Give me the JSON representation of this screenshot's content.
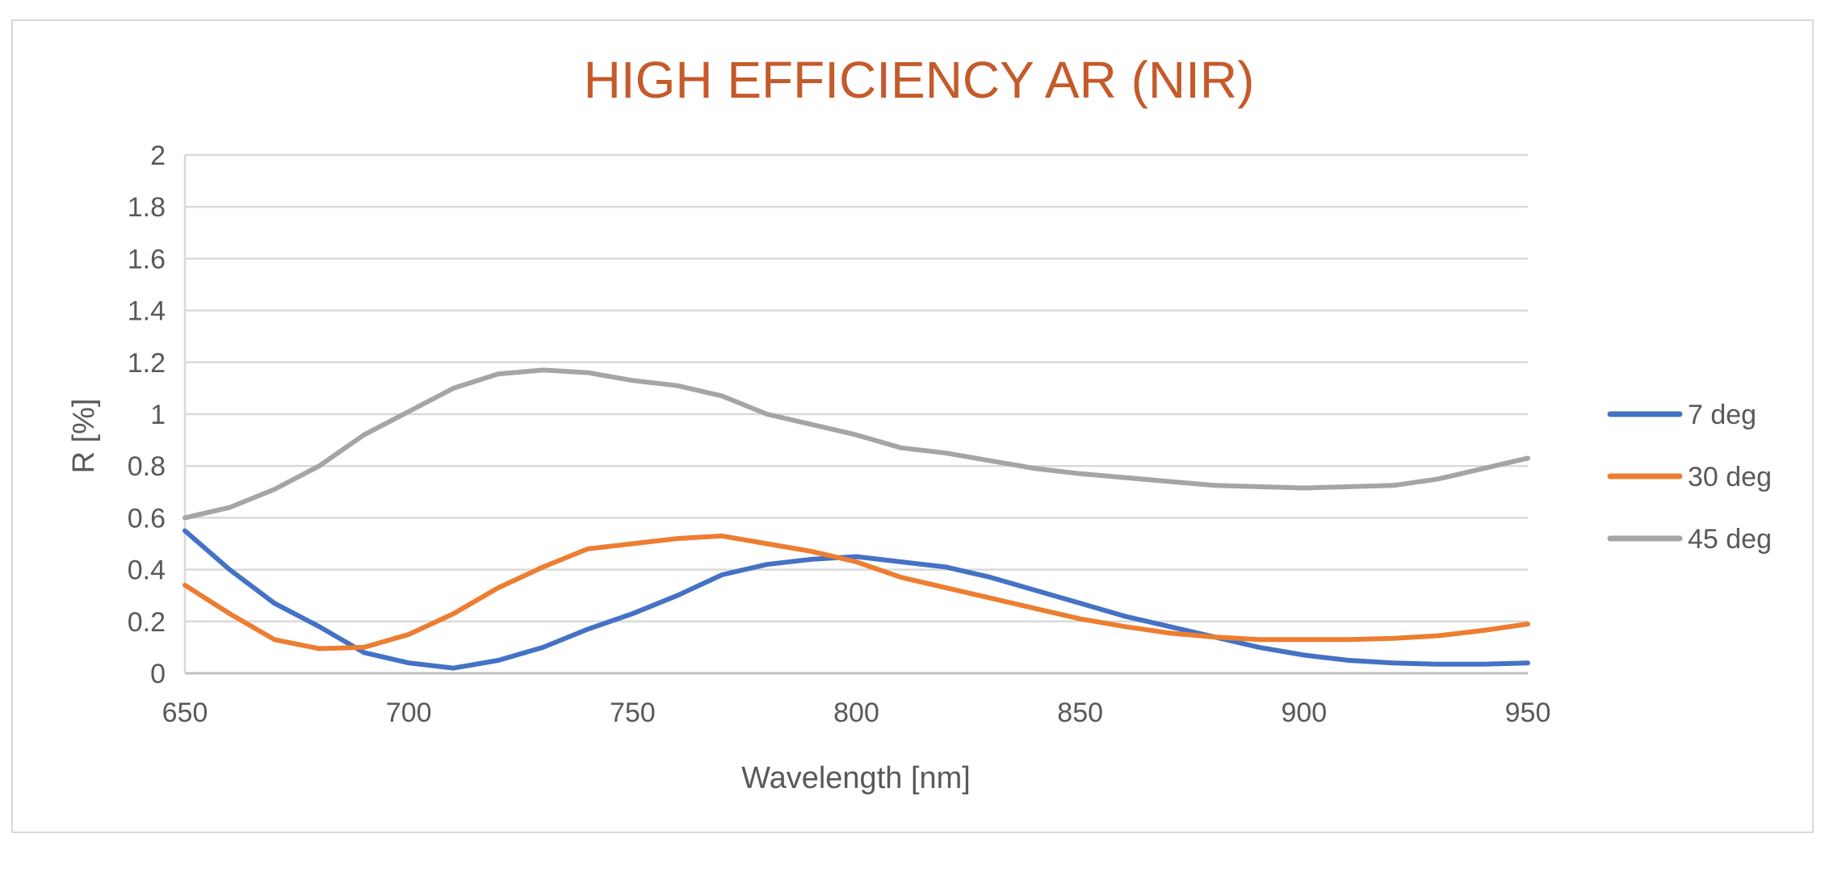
{
  "chart_data": {
    "type": "line",
    "title": "HIGH EFFICIENCY AR (NIR)",
    "xlabel": "Wavelength [nm]",
    "ylabel": "R [%]",
    "xlim": [
      650,
      950
    ],
    "ylim": [
      0,
      2
    ],
    "x_ticks": [
      "650",
      "700",
      "750",
      "800",
      "850",
      "900",
      "950"
    ],
    "y_ticks": [
      "0",
      "0.2",
      "0.4",
      "0.6",
      "0.8",
      "1",
      "1.2",
      "1.4",
      "1.6",
      "1.8",
      "2"
    ],
    "grid": "horizontal",
    "legend_position": "right",
    "x": [
      650,
      660,
      670,
      680,
      690,
      700,
      710,
      720,
      730,
      740,
      750,
      760,
      770,
      780,
      790,
      800,
      810,
      820,
      830,
      840,
      850,
      860,
      870,
      880,
      890,
      900,
      910,
      920,
      930,
      940,
      950
    ],
    "series": [
      {
        "name": "7 deg",
        "color": "#4472c4",
        "values": [
          0.55,
          0.4,
          0.27,
          0.18,
          0.08,
          0.04,
          0.02,
          0.05,
          0.1,
          0.17,
          0.23,
          0.3,
          0.38,
          0.42,
          0.44,
          0.45,
          0.43,
          0.41,
          0.37,
          0.32,
          0.27,
          0.22,
          0.18,
          0.14,
          0.1,
          0.07,
          0.05,
          0.04,
          0.035,
          0.035,
          0.04
        ]
      },
      {
        "name": "30 deg",
        "color": "#ed7d31",
        "values": [
          0.34,
          0.23,
          0.13,
          0.095,
          0.1,
          0.15,
          0.23,
          0.33,
          0.41,
          0.48,
          0.5,
          0.52,
          0.53,
          0.5,
          0.47,
          0.43,
          0.37,
          0.33,
          0.29,
          0.25,
          0.21,
          0.18,
          0.155,
          0.14,
          0.13,
          0.13,
          0.13,
          0.135,
          0.145,
          0.165,
          0.19
        ]
      },
      {
        "name": "45 deg",
        "color": "#a5a5a5",
        "values": [
          0.6,
          0.64,
          0.71,
          0.8,
          0.92,
          1.01,
          1.1,
          1.155,
          1.17,
          1.16,
          1.13,
          1.11,
          1.07,
          1.0,
          0.96,
          0.92,
          0.87,
          0.85,
          0.82,
          0.79,
          0.77,
          0.755,
          0.74,
          0.725,
          0.72,
          0.715,
          0.72,
          0.725,
          0.75,
          0.79,
          0.83
        ]
      }
    ]
  }
}
